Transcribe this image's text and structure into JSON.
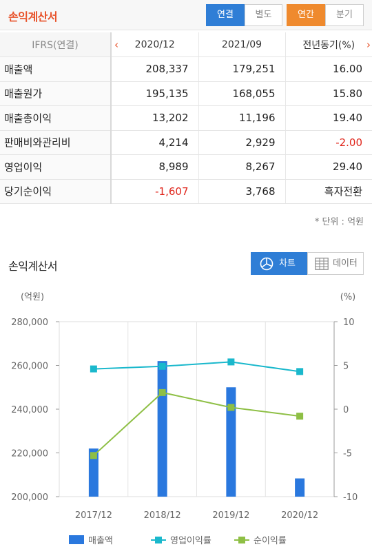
{
  "topbar": {
    "title": "손익계산서",
    "buttons": {
      "consolidated": "연결",
      "separate": "별도",
      "annual": "연간",
      "quarterly": "분기"
    }
  },
  "table": {
    "header": {
      "ifrs": "IFRS(연결)",
      "col1": "2020/12",
      "col2": "2021/09",
      "col3": "전년동기(%)"
    },
    "rows": [
      {
        "label": "매출액",
        "v1": "208,337",
        "v2": "179,251",
        "v3": "16.00",
        "n1": false,
        "n3": false
      },
      {
        "label": "매출원가",
        "v1": "195,135",
        "v2": "168,055",
        "v3": "15.80",
        "n1": false,
        "n3": false
      },
      {
        "label": "매출총이익",
        "v1": "13,202",
        "v2": "11,196",
        "v3": "19.40",
        "n1": false,
        "n3": false
      },
      {
        "label": "판매비와관리비",
        "v1": "4,214",
        "v2": "2,929",
        "v3": "-2.00",
        "n1": false,
        "n3": true
      },
      {
        "label": "영업이익",
        "v1": "8,989",
        "v2": "8,267",
        "v3": "29.40",
        "n1": false,
        "n3": false
      },
      {
        "label": "당기순이익",
        "v1": "-1,607",
        "v2": "3,768",
        "v3": "흑자전환",
        "n1": true,
        "n3": false
      }
    ]
  },
  "unit_note": "* 단위 : 억원",
  "section": {
    "title": "손익계산서",
    "chart_label": "차트",
    "data_label": "데이터"
  },
  "colors": {
    "bar": "#2a78de",
    "op_line": "#1ab8cc",
    "net_line": "#8ebf45",
    "accent": "#e8532b",
    "blue": "#2f7ed6",
    "orange": "#ef8a2e",
    "negative": "#e0261c"
  },
  "chart_data": {
    "type": "bar+line",
    "left_unit": "(억원)",
    "right_unit": "(%)",
    "categories": [
      "2017/12",
      "2018/12",
      "2019/12",
      "2020/12"
    ],
    "left_ticks": [
      "280,000",
      "260,000",
      "240,000",
      "220,000",
      "200,000"
    ],
    "right_ticks": [
      "10",
      "5",
      "0",
      "-5",
      "-10"
    ],
    "ylim_left": [
      200000,
      280000
    ],
    "ylim_right": [
      -10,
      10
    ],
    "series": [
      {
        "name": "매출액",
        "kind": "bar",
        "axis": "left",
        "values": [
          222000,
          262000,
          250000,
          208337
        ]
      },
      {
        "name": "영업이익률",
        "kind": "line",
        "axis": "right",
        "values": [
          4.6,
          4.9,
          5.4,
          4.3
        ]
      },
      {
        "name": "순이익률",
        "kind": "line",
        "axis": "right",
        "values": [
          -5.3,
          1.9,
          0.2,
          -0.8
        ]
      }
    ]
  }
}
